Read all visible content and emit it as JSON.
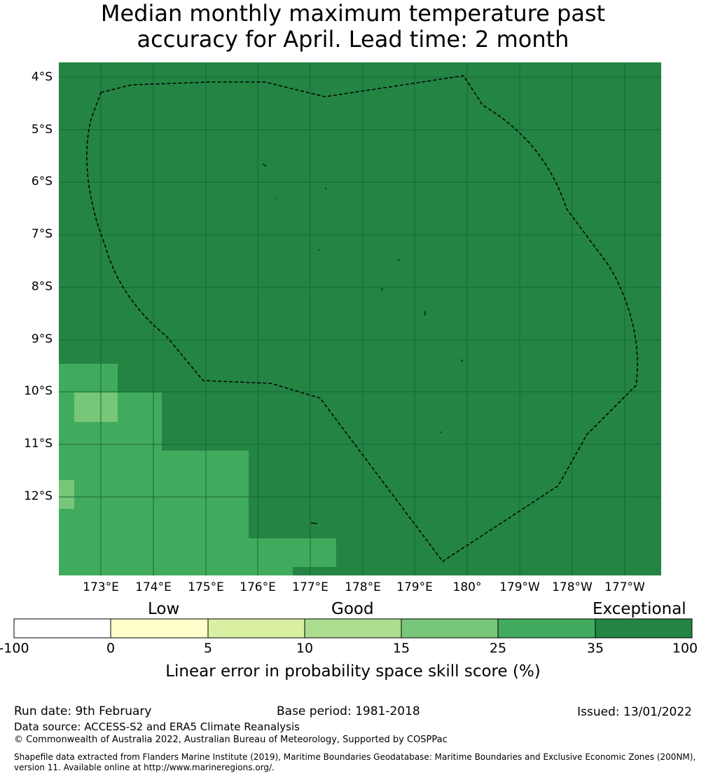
{
  "title_line1": "Median monthly maximum temperature past",
  "title_line2": "accuracy for April. Lead time: 2 month",
  "map": {
    "lat_labels": [
      "4°S",
      "5°S",
      "6°S",
      "7°S",
      "8°S",
      "9°S",
      "10°S",
      "11°S",
      "12°S"
    ],
    "lon_labels": [
      "173°E",
      "174°E",
      "175°E",
      "176°E",
      "177°E",
      "178°E",
      "179°E",
      "180°",
      "179°W",
      "178°W",
      "177°W"
    ],
    "background_color": "#238443",
    "gridline_color": "#1a6634",
    "boundary_style": "dashed black EEZ outline"
  },
  "colorbar": {
    "category_labels": [
      "Low",
      "Good",
      "Exceptional"
    ],
    "tick_labels": [
      "-100",
      "0",
      "5",
      "10",
      "15",
      "25",
      "35",
      "100"
    ],
    "colors": [
      "#ffffff",
      "#ffffcc",
      "#d9f0a3",
      "#addd8e",
      "#78c679",
      "#41ab5d",
      "#238443"
    ],
    "label": "Linear error in probability space skill score (%)"
  },
  "footer": {
    "run_date": "Run date: 9th February",
    "base_period": "Base period: 1981-2018",
    "issued": "Issued: 13/01/2022",
    "data_source": "Data source: ACCESS-S2 and ERA5 Climate Reanalysis",
    "copyright": "© Commonwealth of Australia 2022, Australian Bureau of Meteorology, Supported by COSPPac",
    "shapefile_line1": "Shapefile data extracted from Flanders Marine Institute (2019), Maritime Boundaries Geodatabase: Maritime Boundaries and Exclusive Economic Zones (200NM),",
    "shapefile_line2": "version 11. Available online at http://www.marineregions.org/."
  }
}
